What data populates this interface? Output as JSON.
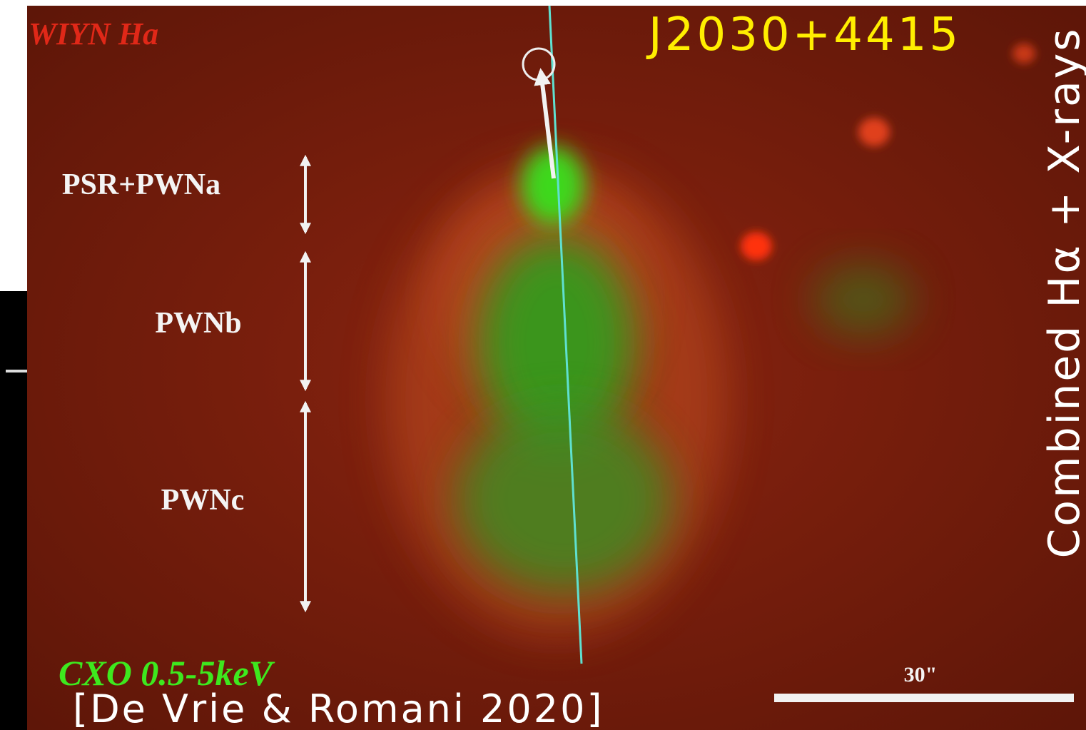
{
  "image": {
    "top_left_label": "WIYN Ha",
    "object_name": "J2030+4415",
    "side_title": "Combined Hα + X-rays",
    "region_labels": [
      "PSR+PWNa",
      "PWNb",
      "PWNc"
    ],
    "band_label": "CXO 0.5-5keV",
    "citation": "[De Vrie & Romani 2020]",
    "scale_label": "30\""
  }
}
